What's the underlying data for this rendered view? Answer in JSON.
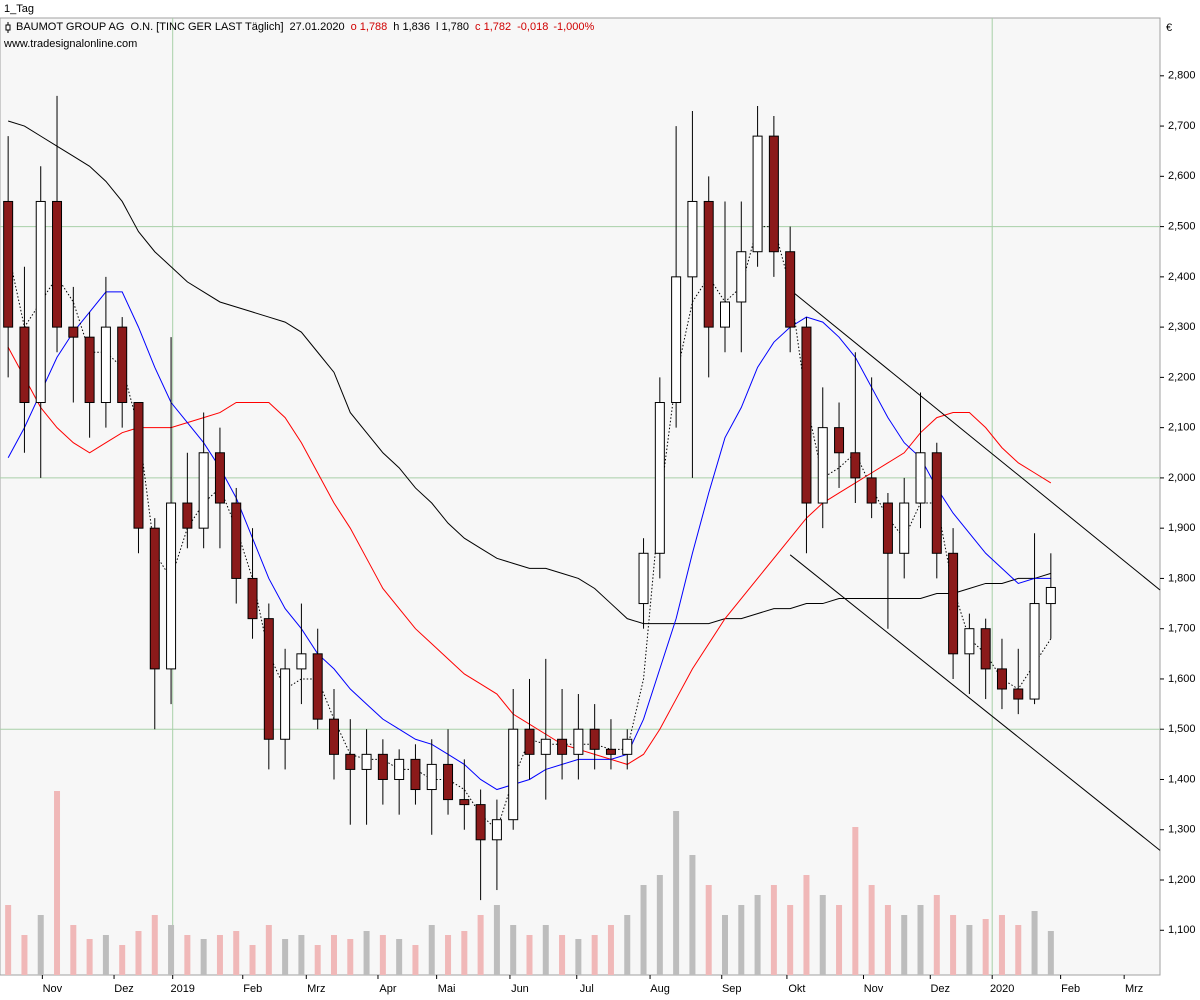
{
  "chart_data": {
    "type": "candlestick",
    "panel_label": "1_Tag",
    "title": "BAUMOT GROUP AG  O.N. [TINC GER LAST Täglich]",
    "quote": {
      "date": "27.01.2020",
      "open": "o 1,788",
      "high": "h 1,836",
      "low": "l 1,780",
      "close": "c 1,782",
      "change": "-0,018",
      "change_pct": "-1,000%"
    },
    "subtitle": "www.tradesignalonline.com",
    "currency": "€",
    "xlim": [
      -0.5,
      70.7
    ],
    "xticks": [
      {
        "value": 2.1,
        "label": "Nov"
      },
      {
        "value": 6.5,
        "label": "Dez"
      },
      {
        "value": 10.1,
        "label": "2019"
      },
      {
        "value": 14.4,
        "label": "Feb"
      },
      {
        "value": 18.3,
        "label": "Mrz"
      },
      {
        "value": 22.7,
        "label": "Apr"
      },
      {
        "value": 26.3,
        "label": "Mai"
      },
      {
        "value": 30.8,
        "label": "Jun"
      },
      {
        "value": 34.9,
        "label": "Jul"
      },
      {
        "value": 39.4,
        "label": "Aug"
      },
      {
        "value": 43.8,
        "label": "Sep"
      },
      {
        "value": 47.8,
        "label": "Okt"
      },
      {
        "value": 52.5,
        "label": "Nov"
      },
      {
        "value": 56.6,
        "label": "Dez"
      },
      {
        "value": 60.4,
        "label": "2020"
      },
      {
        "value": 64.6,
        "label": "Feb"
      },
      {
        "value": 68.5,
        "label": "Mrz"
      }
    ],
    "xgrid": [
      10.1,
      60.4
    ],
    "ylim": [
      1.011,
      2.915
    ],
    "yticks": [
      {
        "value": 1.1,
        "label": "1,100"
      },
      {
        "value": 1.2,
        "label": "1,200"
      },
      {
        "value": 1.3,
        "label": "1,300"
      },
      {
        "value": 1.4,
        "label": "1,400"
      },
      {
        "value": 1.5,
        "label": "1,500"
      },
      {
        "value": 1.6,
        "label": "1,600"
      },
      {
        "value": 1.7,
        "label": "1,700"
      },
      {
        "value": 1.8,
        "label": "1,800"
      },
      {
        "value": 1.9,
        "label": "1,900"
      },
      {
        "value": 2.0,
        "label": "2,000"
      },
      {
        "value": 2.1,
        "label": "2,100"
      },
      {
        "value": 2.2,
        "label": "2,200"
      },
      {
        "value": 2.3,
        "label": "2,300"
      },
      {
        "value": 2.4,
        "label": "2,400"
      },
      {
        "value": 2.5,
        "label": "2,500"
      },
      {
        "value": 2.6,
        "label": "2,600"
      },
      {
        "value": 2.7,
        "label": "2,700"
      },
      {
        "value": 2.8,
        "label": "2,800"
      }
    ],
    "ygrid": [
      1.5,
      2.0,
      2.5
    ],
    "up_color": "#ffffff",
    "down_color": "#8b1a1a",
    "candles": [
      {
        "o": 2.55,
        "h": 2.68,
        "l": 2.2,
        "c": 2.3
      },
      {
        "o": 2.3,
        "h": 2.42,
        "l": 2.05,
        "c": 2.15
      },
      {
        "o": 2.15,
        "h": 2.62,
        "l": 2.0,
        "c": 2.55
      },
      {
        "o": 2.55,
        "h": 2.76,
        "l": 2.25,
        "c": 2.3
      },
      {
        "o": 2.3,
        "h": 2.38,
        "l": 2.15,
        "c": 2.28
      },
      {
        "o": 2.28,
        "h": 2.33,
        "l": 2.08,
        "c": 2.15
      },
      {
        "o": 2.15,
        "h": 2.4,
        "l": 2.1,
        "c": 2.3
      },
      {
        "o": 2.3,
        "h": 2.32,
        "l": 2.1,
        "c": 2.15
      },
      {
        "o": 2.15,
        "h": 2.15,
        "l": 1.85,
        "c": 1.9
      },
      {
        "o": 1.9,
        "h": 1.92,
        "l": 1.5,
        "c": 1.62
      },
      {
        "o": 1.62,
        "h": 2.28,
        "l": 1.55,
        "c": 1.95
      },
      {
        "o": 1.95,
        "h": 2.05,
        "l": 1.86,
        "c": 1.9
      },
      {
        "o": 1.9,
        "h": 2.13,
        "l": 1.86,
        "c": 2.05
      },
      {
        "o": 2.05,
        "h": 2.1,
        "l": 1.86,
        "c": 1.95
      },
      {
        "o": 1.95,
        "h": 1.98,
        "l": 1.75,
        "c": 1.8
      },
      {
        "o": 1.8,
        "h": 1.9,
        "l": 1.68,
        "c": 1.72
      },
      {
        "o": 1.72,
        "h": 1.75,
        "l": 1.42,
        "c": 1.48
      },
      {
        "o": 1.48,
        "h": 1.66,
        "l": 1.42,
        "c": 1.62
      },
      {
        "o": 1.62,
        "h": 1.75,
        "l": 1.55,
        "c": 1.65
      },
      {
        "o": 1.65,
        "h": 1.7,
        "l": 1.5,
        "c": 1.52
      },
      {
        "o": 1.52,
        "h": 1.58,
        "l": 1.4,
        "c": 1.45
      },
      {
        "o": 1.45,
        "h": 1.52,
        "l": 1.31,
        "c": 1.42
      },
      {
        "o": 1.42,
        "h": 1.5,
        "l": 1.31,
        "c": 1.45
      },
      {
        "o": 1.45,
        "h": 1.48,
        "l": 1.35,
        "c": 1.4
      },
      {
        "o": 1.4,
        "h": 1.46,
        "l": 1.33,
        "c": 1.44
      },
      {
        "o": 1.44,
        "h": 1.47,
        "l": 1.35,
        "c": 1.38
      },
      {
        "o": 1.38,
        "h": 1.48,
        "l": 1.29,
        "c": 1.43
      },
      {
        "o": 1.43,
        "h": 1.5,
        "l": 1.33,
        "c": 1.36
      },
      {
        "o": 1.36,
        "h": 1.44,
        "l": 1.3,
        "c": 1.35
      },
      {
        "o": 1.35,
        "h": 1.38,
        "l": 1.16,
        "c": 1.28
      },
      {
        "o": 1.28,
        "h": 1.36,
        "l": 1.18,
        "c": 1.32
      },
      {
        "o": 1.32,
        "h": 1.58,
        "l": 1.3,
        "c": 1.5
      },
      {
        "o": 1.5,
        "h": 1.6,
        "l": 1.4,
        "c": 1.45
      },
      {
        "o": 1.45,
        "h": 1.64,
        "l": 1.36,
        "c": 1.48
      },
      {
        "o": 1.48,
        "h": 1.58,
        "l": 1.4,
        "c": 1.45
      },
      {
        "o": 1.45,
        "h": 1.57,
        "l": 1.4,
        "c": 1.5
      },
      {
        "o": 1.5,
        "h": 1.55,
        "l": 1.42,
        "c": 1.46
      },
      {
        "o": 1.46,
        "h": 1.52,
        "l": 1.42,
        "c": 1.45
      },
      {
        "o": 1.45,
        "h": 1.5,
        "l": 1.42,
        "c": 1.48
      },
      {
        "o": 1.75,
        "h": 1.88,
        "l": 1.7,
        "c": 1.85
      },
      {
        "o": 1.85,
        "h": 2.2,
        "l": 1.8,
        "c": 2.15
      },
      {
        "o": 2.15,
        "h": 2.7,
        "l": 2.1,
        "c": 2.4
      },
      {
        "o": 2.4,
        "h": 2.73,
        "l": 2.0,
        "c": 2.55
      },
      {
        "o": 2.55,
        "h": 2.6,
        "l": 2.2,
        "c": 2.3
      },
      {
        "o": 2.3,
        "h": 2.55,
        "l": 2.25,
        "c": 2.35
      },
      {
        "o": 2.35,
        "h": 2.55,
        "l": 2.25,
        "c": 2.45
      },
      {
        "o": 2.45,
        "h": 2.74,
        "l": 2.42,
        "c": 2.68
      },
      {
        "o": 2.68,
        "h": 2.72,
        "l": 2.4,
        "c": 2.45
      },
      {
        "o": 2.45,
        "h": 2.5,
        "l": 2.25,
        "c": 2.3
      },
      {
        "o": 2.3,
        "h": 2.32,
        "l": 1.85,
        "c": 1.95
      },
      {
        "o": 1.95,
        "h": 2.18,
        "l": 1.9,
        "c": 2.1
      },
      {
        "o": 2.1,
        "h": 2.15,
        "l": 1.98,
        "c": 2.05
      },
      {
        "o": 2.05,
        "h": 2.25,
        "l": 1.95,
        "c": 2.0
      },
      {
        "o": 2.0,
        "h": 2.2,
        "l": 1.92,
        "c": 1.95
      },
      {
        "o": 1.95,
        "h": 1.97,
        "l": 1.7,
        "c": 1.85
      },
      {
        "o": 1.85,
        "h": 2.0,
        "l": 1.8,
        "c": 1.95
      },
      {
        "o": 1.95,
        "h": 2.17,
        "l": 1.9,
        "c": 2.05
      },
      {
        "o": 2.05,
        "h": 2.07,
        "l": 1.8,
        "c": 1.85
      },
      {
        "o": 1.85,
        "h": 1.9,
        "l": 1.6,
        "c": 1.65
      },
      {
        "o": 1.65,
        "h": 1.73,
        "l": 1.57,
        "c": 1.7
      },
      {
        "o": 1.7,
        "h": 1.72,
        "l": 1.56,
        "c": 1.62
      },
      {
        "o": 1.62,
        "h": 1.68,
        "l": 1.54,
        "c": 1.58
      },
      {
        "o": 1.58,
        "h": 1.66,
        "l": 1.53,
        "c": 1.56
      },
      {
        "o": 1.56,
        "h": 1.89,
        "l": 1.55,
        "c": 1.75
      },
      {
        "o": 1.75,
        "h": 1.85,
        "l": 1.68,
        "c": 1.782
      }
    ],
    "series": [
      {
        "color": "#000000",
        "dash": "none",
        "values": [
          2.71,
          2.7,
          2.68,
          2.66,
          2.64,
          2.62,
          2.59,
          2.55,
          2.49,
          2.45,
          2.42,
          2.39,
          2.37,
          2.35,
          2.34,
          2.33,
          2.32,
          2.31,
          2.29,
          2.25,
          2.21,
          2.13,
          2.09,
          2.05,
          2.02,
          1.98,
          1.95,
          1.91,
          1.88,
          1.86,
          1.84,
          1.83,
          1.82,
          1.82,
          1.81,
          1.8,
          1.78,
          1.75,
          1.72,
          1.71,
          1.71,
          1.71,
          1.71,
          1.71,
          1.72,
          1.72,
          1.73,
          1.74,
          1.74,
          1.75,
          1.75,
          1.76,
          1.76,
          1.76,
          1.76,
          1.76,
          1.76,
          1.77,
          1.77,
          1.78,
          1.79,
          1.79,
          1.8,
          1.8,
          1.81
        ]
      },
      {
        "color": "#ff0000",
        "dash": "none",
        "values": [
          2.26,
          2.2,
          2.14,
          2.1,
          2.07,
          2.05,
          2.07,
          2.09,
          2.1,
          2.1,
          2.1,
          2.11,
          2.12,
          2.13,
          2.15,
          2.15,
          2.15,
          2.12,
          2.07,
          2.01,
          1.95,
          1.9,
          1.84,
          1.78,
          1.74,
          1.7,
          1.67,
          1.64,
          1.61,
          1.59,
          1.57,
          1.53,
          1.51,
          1.49,
          1.47,
          1.46,
          1.45,
          1.44,
          1.43,
          1.45,
          1.5,
          1.56,
          1.62,
          1.67,
          1.72,
          1.76,
          1.8,
          1.84,
          1.88,
          1.92,
          1.95,
          1.97,
          1.99,
          2.01,
          2.03,
          2.05,
          2.09,
          2.12,
          2.13,
          2.13,
          2.1,
          2.06,
          2.03,
          2.01,
          1.99
        ]
      },
      {
        "color": "#0000ff",
        "dash": "none",
        "values": [
          2.04,
          2.1,
          2.17,
          2.24,
          2.29,
          2.33,
          2.37,
          2.37,
          2.3,
          2.22,
          2.15,
          2.11,
          2.07,
          2.02,
          1.96,
          1.88,
          1.8,
          1.74,
          1.7,
          1.65,
          1.62,
          1.58,
          1.55,
          1.52,
          1.5,
          1.48,
          1.47,
          1.45,
          1.43,
          1.4,
          1.38,
          1.39,
          1.4,
          1.42,
          1.43,
          1.44,
          1.44,
          1.44,
          1.45,
          1.52,
          1.62,
          1.72,
          1.85,
          1.97,
          2.08,
          2.14,
          2.22,
          2.27,
          2.3,
          2.32,
          2.31,
          2.28,
          2.24,
          2.18,
          2.12,
          2.07,
          2.04,
          1.98,
          1.93,
          1.89,
          1.85,
          1.82,
          1.79,
          1.8,
          1.8
        ]
      },
      {
        "color": "#000000",
        "dash": "1.5,2",
        "values": [
          2.45,
          2.3,
          2.35,
          2.4,
          2.35,
          2.25,
          2.25,
          2.22,
          2.1,
          1.85,
          1.8,
          1.9,
          1.95,
          1.98,
          1.9,
          1.8,
          1.65,
          1.58,
          1.6,
          1.6,
          1.52,
          1.45,
          1.44,
          1.44,
          1.42,
          1.42,
          1.4,
          1.4,
          1.38,
          1.33,
          1.3,
          1.4,
          1.48,
          1.47,
          1.47,
          1.47,
          1.47,
          1.46,
          1.46,
          1.6,
          1.95,
          2.2,
          2.35,
          2.4,
          2.35,
          2.38,
          2.5,
          2.5,
          2.38,
          2.15,
          2.0,
          2.02,
          2.05,
          1.98,
          1.92,
          1.88,
          1.95,
          1.95,
          1.78,
          1.68,
          1.65,
          1.6,
          1.58,
          1.63,
          1.68
        ]
      }
    ],
    "trendlines": [
      {
        "color": "#000000",
        "x": [
          48.0,
          70.7
        ],
        "y": [
          2.374,
          1.777
        ]
      },
      {
        "color": "#000000",
        "x": [
          48.0,
          70.7
        ],
        "y": [
          1.847,
          1.259
        ]
      }
    ],
    "volume_lim": [
      0,
      100
    ],
    "volume_up_color": "#bdbdbd",
    "volume_down_color": "#f0b8b8",
    "volume": [
      35,
      20,
      30,
      92,
      25,
      18,
      20,
      15,
      22,
      30,
      25,
      20,
      18,
      20,
      22,
      15,
      25,
      18,
      20,
      15,
      20,
      18,
      22,
      20,
      18,
      15,
      25,
      20,
      22,
      30,
      35,
      25,
      20,
      25,
      20,
      18,
      20,
      25,
      30,
      45,
      50,
      82,
      60,
      45,
      30,
      35,
      40,
      45,
      35,
      50,
      40,
      35,
      74,
      45,
      35,
      30,
      35,
      40,
      30,
      25,
      28,
      30,
      25,
      32,
      22
    ]
  }
}
